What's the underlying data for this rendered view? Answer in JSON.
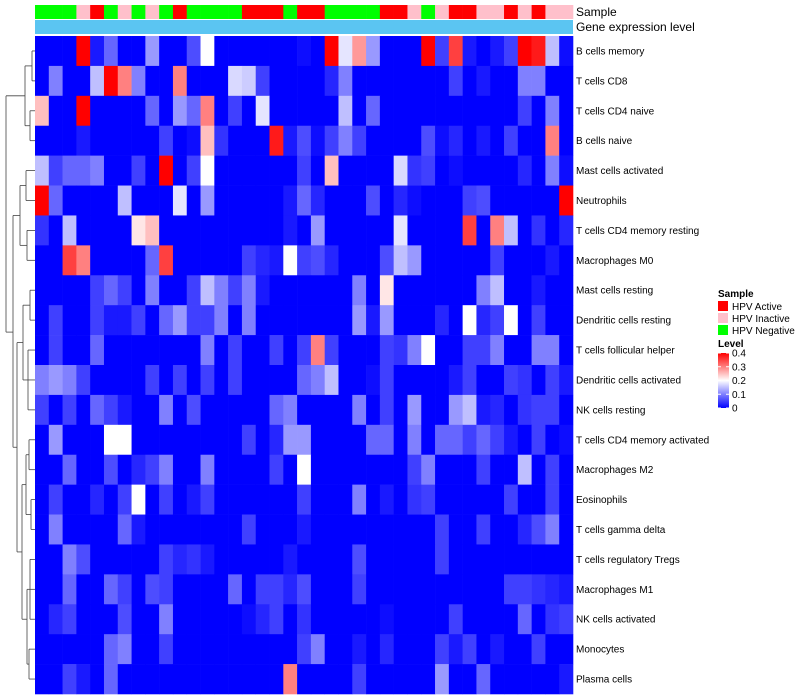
{
  "chart_data": {
    "type": "heatmap",
    "annotation_rows": [
      {
        "name": "Sample"
      },
      {
        "name": "Gene expression level"
      }
    ],
    "sample_groups": [
      "G",
      "G",
      "G",
      "P",
      "R",
      "G",
      "P",
      "G",
      "P",
      "G",
      "R",
      "G",
      "G",
      "G",
      "G",
      "R",
      "R",
      "R",
      "G",
      "R",
      "R",
      "G",
      "G",
      "G",
      "G",
      "R",
      "R",
      "P",
      "G",
      "P",
      "R",
      "R",
      "P",
      "P",
      "R",
      "P",
      "R",
      "P",
      "P"
    ],
    "expression_level_color": "#5BC5F2",
    "legend_sample": {
      "title": "Sample",
      "items": [
        {
          "key": "R",
          "label": "HPV Active",
          "color": "#FF0000"
        },
        {
          "key": "P",
          "label": "HPV Inactive",
          "color": "#FFC0CB"
        },
        {
          "key": "G",
          "label": "HPV Negative",
          "color": "#00FF00"
        }
      ]
    },
    "legend_level": {
      "title": "Level",
      "ticks": [
        "0.4",
        "0.3",
        "0.2",
        "0.1",
        "0"
      ],
      "tick_values": [
        0.4,
        0.3,
        0.2,
        0.1,
        0
      ],
      "range": [
        0,
        0.4
      ],
      "colors": [
        "#0000FF",
        "#FFFFFF",
        "#FF0000"
      ]
    },
    "rows": [
      "B cells memory",
      "T cells CD8",
      "T cells CD4 naive",
      "B cells naive",
      "Mast cells activated",
      "Neutrophils",
      "T cells CD4 memory resting",
      "Macrophages M0",
      "Mast cells resting",
      "Dendritic cells resting",
      "T cells follicular helper",
      "Dendritic cells activated",
      "NK cells resting",
      "T cells CD4 memory activated",
      "Macrophages M2",
      "Eosinophils",
      "T cells gamma delta",
      "T cells regulatory  Tregs",
      "Macrophages M1",
      "NK cells activated",
      "Monocytes",
      "Plasma cells"
    ],
    "values": [
      [
        0,
        0,
        0,
        0.4,
        0.02,
        0.08,
        0,
        0,
        0.12,
        0,
        0,
        0.06,
        0.2,
        0,
        0,
        0,
        0,
        0,
        0,
        0.01,
        0,
        0.4,
        0.18,
        0.28,
        0.12,
        0,
        0,
        0,
        0.4,
        0.05,
        0.35,
        0.02,
        0,
        0.02,
        0.05,
        0.4,
        0.38,
        0.15,
        0.01
      ],
      [
        0,
        0.1,
        0,
        0,
        0.15,
        0.4,
        0.3,
        0.1,
        0,
        0,
        0.3,
        0,
        0,
        0,
        0.17,
        0.16,
        0.05,
        0,
        0,
        0,
        0,
        0.03,
        0.1,
        0,
        0,
        0,
        0,
        0,
        0,
        0,
        0.05,
        0,
        0.02,
        0,
        0,
        0.1,
        0.1,
        0,
        0
      ],
      [
        0.25,
        0,
        0,
        0.4,
        0,
        0,
        0,
        0,
        0.08,
        0,
        0.12,
        0.08,
        0.3,
        0,
        0.05,
        0,
        0.18,
        0,
        0,
        0,
        0,
        0,
        0.15,
        0,
        0.08,
        0,
        0,
        0,
        0,
        0,
        0,
        0,
        0,
        0,
        0,
        0.05,
        0,
        0.1,
        0
      ],
      [
        0,
        0,
        0,
        0.02,
        0,
        0,
        0,
        0,
        0,
        0.05,
        0,
        0.01,
        0.25,
        0.04,
        0,
        0,
        0,
        0.38,
        0.02,
        0.06,
        0.01,
        0.05,
        0.1,
        0.05,
        0,
        0,
        0,
        0,
        0.06,
        0.01,
        0.03,
        0,
        0.02,
        0,
        0.05,
        0,
        0,
        0.3,
        0
      ],
      [
        0.15,
        0.05,
        0.08,
        0.08,
        0.1,
        0,
        0,
        0.05,
        0,
        0.4,
        0,
        0.05,
        0.2,
        0,
        0,
        0,
        0,
        0,
        0,
        0.05,
        0,
        0.25,
        0,
        0,
        0,
        0,
        0.17,
        0.04,
        0.05,
        0,
        0.01,
        0,
        0,
        0,
        0,
        0.03,
        0,
        0.1,
        0.01
      ],
      [
        0.4,
        0.08,
        0,
        0,
        0,
        0,
        0.15,
        0,
        0,
        0,
        0.18,
        0,
        0.12,
        0,
        0,
        0,
        0,
        0,
        0.02,
        0.08,
        0.03,
        0,
        0,
        0,
        0.06,
        0,
        0.03,
        0.01,
        0,
        0,
        0,
        0.05,
        0.06,
        0,
        0,
        0,
        0,
        0,
        0.4
      ],
      [
        0.04,
        0,
        0.15,
        0,
        0,
        0,
        0,
        0.22,
        0.25,
        0,
        0,
        0,
        0,
        0,
        0,
        0,
        0,
        0,
        0.02,
        0,
        0.12,
        0,
        0,
        0,
        0,
        0,
        0.18,
        0,
        0,
        0,
        0,
        0.35,
        0,
        0.3,
        0.15,
        0,
        0.04,
        0,
        0.03
      ],
      [
        0,
        0,
        0.35,
        0.3,
        0,
        0,
        0,
        0,
        0.08,
        0.35,
        0,
        0,
        0,
        0,
        0,
        0.05,
        0.03,
        0.02,
        0.2,
        0.05,
        0.06,
        0.03,
        0,
        0,
        0,
        0.06,
        0.15,
        0.12,
        0,
        0,
        0,
        0,
        0,
        0.05,
        0,
        0,
        0,
        0.02,
        0
      ],
      [
        0,
        0,
        0,
        0,
        0.05,
        0.08,
        0.05,
        0,
        0.1,
        0,
        0,
        0.05,
        0.15,
        0.1,
        0.05,
        0.1,
        0.02,
        0,
        0,
        0,
        0,
        0,
        0,
        0.1,
        0,
        0.22,
        0,
        0,
        0,
        0,
        0,
        0,
        0.1,
        0.15,
        0,
        0,
        0.02,
        0,
        0
      ],
      [
        0,
        0.05,
        0,
        0,
        0.05,
        0.02,
        0.02,
        0.05,
        0,
        0.08,
        0.12,
        0.05,
        0.05,
        0.1,
        0,
        0.1,
        0,
        0,
        0,
        0,
        0,
        0,
        0,
        0.12,
        0.02,
        0.12,
        0,
        0,
        0,
        0.03,
        0,
        0.2,
        0.03,
        0.05,
        0.2,
        0,
        0.05,
        0,
        0
      ],
      [
        0,
        0.05,
        0,
        0,
        0.08,
        0,
        0,
        0,
        0,
        0,
        0,
        0,
        0.1,
        0,
        0.05,
        0,
        0,
        0.05,
        0,
        0.05,
        0.3,
        0.05,
        0,
        0,
        0,
        0.05,
        0.04,
        0.1,
        0.2,
        0,
        0,
        0.05,
        0.05,
        0.1,
        0,
        0,
        0.1,
        0.1,
        0
      ],
      [
        0.1,
        0.12,
        0.1,
        0.05,
        0,
        0,
        0,
        0,
        0.05,
        0,
        0.05,
        0,
        0.05,
        0,
        0.05,
        0,
        0,
        0,
        0,
        0.08,
        0.1,
        0.15,
        0,
        0,
        0.01,
        0.05,
        0,
        0,
        0,
        0,
        0.02,
        0.05,
        0,
        0,
        0.05,
        0.04,
        0,
        0.05,
        0.02
      ],
      [
        0.05,
        0,
        0.05,
        0,
        0.08,
        0.05,
        0.02,
        0,
        0,
        0.1,
        0,
        0.06,
        0,
        0,
        0,
        0,
        0,
        0.08,
        0.1,
        0,
        0,
        0,
        0,
        0.1,
        0,
        0.05,
        0,
        0.12,
        0,
        0,
        0.12,
        0.15,
        0.02,
        0.03,
        0,
        0.04,
        0.05,
        0.05,
        0
      ],
      [
        0,
        0.12,
        0,
        0,
        0,
        0.2,
        0.2,
        0,
        0,
        0,
        0,
        0,
        0,
        0,
        0,
        0.05,
        0,
        0.03,
        0.12,
        0.12,
        0,
        0,
        0,
        0,
        0.08,
        0.08,
        0,
        0.1,
        0,
        0.08,
        0.08,
        0.05,
        0.08,
        0.05,
        0.02,
        0,
        0.05,
        0,
        0.01
      ],
      [
        0,
        0,
        0.08,
        0,
        0,
        0.06,
        0,
        0.03,
        0.05,
        0.1,
        0,
        0,
        0.1,
        0,
        0,
        0,
        0,
        0.05,
        0,
        0.2,
        0,
        0,
        0,
        0,
        0,
        0,
        0,
        0.05,
        0.1,
        0,
        0,
        0,
        0.05,
        0,
        0,
        0.15,
        0,
        0.05,
        0
      ],
      [
        0,
        0.05,
        0,
        0,
        0.03,
        0,
        0.05,
        0.2,
        0,
        0.05,
        0,
        0.02,
        0.05,
        0,
        0,
        0,
        0,
        0,
        0,
        0.05,
        0,
        0,
        0,
        0.1,
        0,
        0.02,
        0,
        0.04,
        0.05,
        0,
        0,
        0,
        0,
        0,
        0.05,
        0,
        0,
        0.05,
        0
      ],
      [
        0,
        0.1,
        0,
        0,
        0,
        0,
        0.08,
        0.02,
        0,
        0,
        0,
        0,
        0,
        0,
        0,
        0.05,
        0,
        0,
        0,
        0.02,
        0,
        0,
        0,
        0,
        0,
        0,
        0,
        0,
        0,
        0.05,
        0,
        0,
        0.05,
        0,
        0,
        0.03,
        0.06,
        0.1,
        0
      ],
      [
        0,
        0,
        0.1,
        0.06,
        0,
        0,
        0,
        0,
        0,
        0.05,
        0.03,
        0.04,
        0.02,
        0,
        0,
        0,
        0,
        0,
        0.02,
        0,
        0,
        0,
        0,
        0.06,
        0,
        0,
        0,
        0,
        0,
        0.05,
        0,
        0,
        0,
        0,
        0,
        0,
        0,
        0,
        0
      ],
      [
        0,
        0,
        0.08,
        0,
        0,
        0.08,
        0.05,
        0,
        0.06,
        0.05,
        0,
        0,
        0,
        0,
        0.08,
        0,
        0.05,
        0.05,
        0.03,
        0.06,
        0,
        0,
        0,
        0.05,
        0,
        0,
        0,
        0,
        0,
        0,
        0,
        0,
        0,
        0,
        0.05,
        0.05,
        0.04,
        0.03,
        0.02
      ],
      [
        0,
        0.03,
        0.05,
        0,
        0,
        0,
        0.06,
        0,
        0,
        0.1,
        0,
        0,
        0,
        0,
        0,
        0.01,
        0.03,
        0.05,
        0,
        0.04,
        0,
        0,
        0,
        0,
        0,
        0.01,
        0,
        0,
        0,
        0,
        0.05,
        0,
        0,
        0,
        0,
        0.08,
        0,
        0.04,
        0.05
      ],
      [
        0,
        0,
        0,
        0,
        0,
        0.08,
        0.1,
        0,
        0,
        0.05,
        0,
        0,
        0,
        0,
        0,
        0,
        0,
        0,
        0,
        0.05,
        0.1,
        0,
        0,
        0.02,
        0,
        0.03,
        0,
        0,
        0,
        0.05,
        0.02,
        0.05,
        0,
        0.02,
        0,
        0,
        0.05,
        0,
        0
      ],
      [
        0,
        0,
        0.05,
        0.02,
        0,
        0.08,
        0,
        0,
        0,
        0,
        0,
        0,
        0,
        0,
        0,
        0,
        0,
        0,
        0.3,
        0,
        0,
        0,
        0,
        0.05,
        0,
        0,
        0,
        0,
        0,
        0.12,
        0,
        0,
        0.08,
        0,
        0,
        0,
        0,
        0,
        0.02
      ]
    ]
  }
}
